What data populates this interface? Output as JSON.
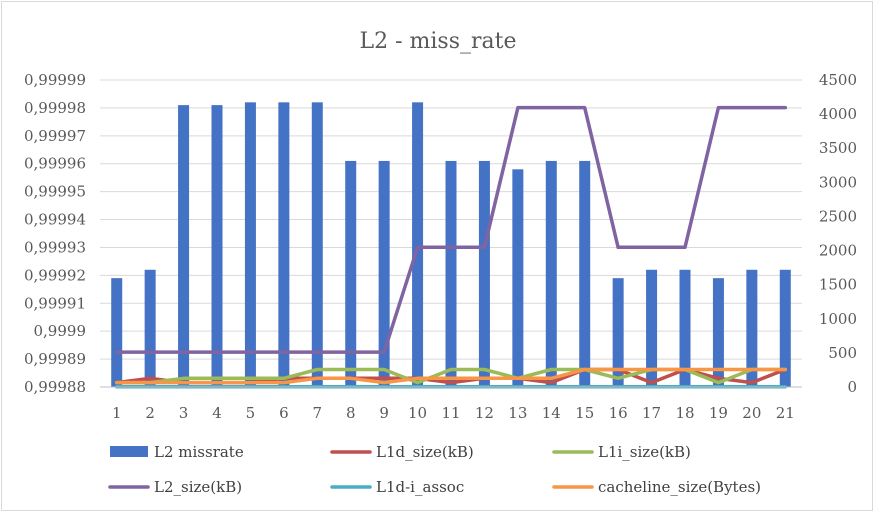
{
  "chart_data": {
    "type": "bar",
    "title": "L2 - miss_rate",
    "categories": [
      "1",
      "2",
      "3",
      "4",
      "5",
      "6",
      "7",
      "8",
      "9",
      "10",
      "11",
      "12",
      "13",
      "14",
      "15",
      "16",
      "17",
      "18",
      "19",
      "20",
      "21"
    ],
    "y_left": {
      "ylim": [
        0.99988,
        0.99999
      ],
      "tick_values": [
        0.99988,
        0.99989,
        0.9999,
        0.99991,
        0.99992,
        0.99993,
        0.99994,
        0.99995,
        0.99996,
        0.99997,
        0.99998,
        0.99999
      ],
      "tick_labels": [
        "0,99988",
        "0,99989",
        "0,9999",
        "0,99991",
        "0,99992",
        "0,99993",
        "0,99994",
        "0,99995",
        "0,99996",
        "0,99997",
        "0,99998",
        "0,99999"
      ]
    },
    "y_right": {
      "ylim": [
        0,
        4500
      ],
      "tick_values": [
        0,
        500,
        1000,
        1500,
        2000,
        2500,
        3000,
        3500,
        4000,
        4500
      ],
      "tick_labels": [
        "0",
        "500",
        "1000",
        "1500",
        "2000",
        "2500",
        "3000",
        "3500",
        "4000",
        "4500"
      ]
    },
    "grid": true,
    "legend_position": "bottom",
    "series": [
      {
        "name": "L2 missrate",
        "kind": "bar",
        "axis": "left",
        "color": "#4472c4",
        "values": [
          0.999919,
          0.999922,
          0.999981,
          0.999981,
          0.999982,
          0.999982,
          0.999982,
          0.999961,
          0.999961,
          0.999982,
          0.999961,
          0.999961,
          0.999958,
          0.999961,
          0.999961,
          0.999919,
          0.999922,
          0.999922,
          0.999919,
          0.999922,
          0.999922
        ]
      },
      {
        "name": "L1d_size(kB)",
        "kind": "line",
        "axis": "right",
        "color": "#c0504d",
        "values": [
          64,
          128,
          64,
          64,
          64,
          128,
          128,
          128,
          128,
          128,
          64,
          128,
          128,
          64,
          256,
          256,
          64,
          256,
          128,
          64,
          256
        ]
      },
      {
        "name": "L1i_size(kB)",
        "kind": "line",
        "axis": "right",
        "color": "#9bbb59",
        "values": [
          64,
          64,
          128,
          128,
          128,
          128,
          256,
          256,
          256,
          64,
          256,
          256,
          128,
          256,
          256,
          128,
          256,
          256,
          64,
          256,
          256
        ]
      },
      {
        "name": "L2_size(kB)",
        "kind": "line",
        "axis": "right",
        "color": "#8064a2",
        "values": [
          512,
          512,
          512,
          512,
          512,
          512,
          512,
          512,
          512,
          2048,
          2048,
          2048,
          4096,
          4096,
          4096,
          2048,
          2048,
          2048,
          4096,
          4096,
          4096
        ]
      },
      {
        "name": "L1d-i_assoc",
        "kind": "line",
        "axis": "right",
        "color": "#4bacc6",
        "values": [
          4,
          4,
          4,
          4,
          4,
          4,
          4,
          4,
          4,
          4,
          4,
          4,
          4,
          4,
          4,
          4,
          4,
          4,
          4,
          4,
          4
        ]
      },
      {
        "name": "cacheline_size(Bytes)",
        "kind": "line",
        "axis": "right",
        "color": "#f79646",
        "values": [
          64,
          64,
          64,
          64,
          64,
          64,
          128,
          128,
          64,
          128,
          128,
          128,
          128,
          128,
          256,
          256,
          256,
          256,
          256,
          256,
          256
        ]
      }
    ]
  }
}
